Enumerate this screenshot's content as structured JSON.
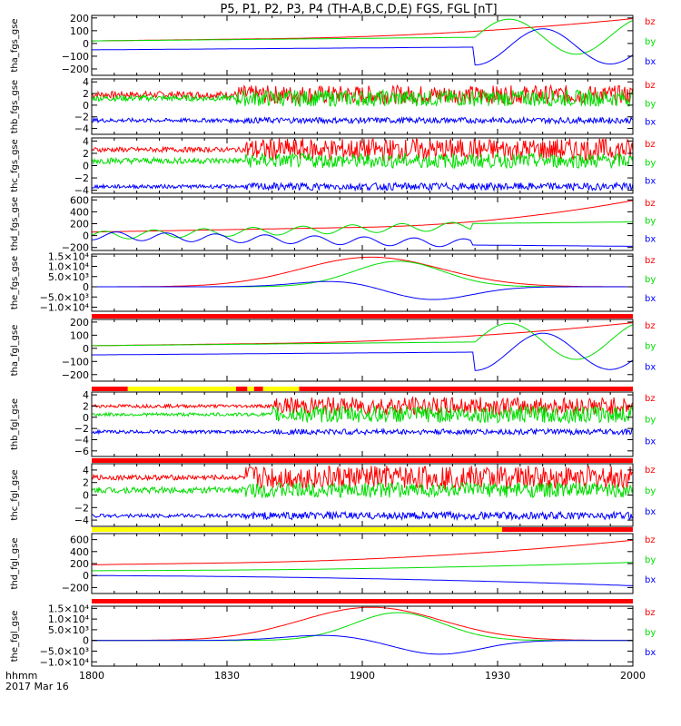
{
  "chart_data": {
    "type": "line",
    "title": "P5, P1, P2, P3, P4 (TH-A,B,C,D,E) FGS, FGL [nT]",
    "x_axis": {
      "label_line1": "hhmm",
      "label_line2": "2017 Mar 16",
      "ticks": [
        {
          "t": 0,
          "label": "1800"
        },
        {
          "t": 30,
          "label": "1830"
        },
        {
          "t": 60,
          "label": "1900"
        },
        {
          "t": 90,
          "label": "1930"
        },
        {
          "t": 120,
          "label": "2000"
        }
      ],
      "range_minutes": [
        0,
        120
      ]
    },
    "legend": [
      "bz",
      "by",
      "bx"
    ],
    "colors": {
      "bz": "#ff0000",
      "by": "#00dd00",
      "bx": "#0000ff",
      "bar_red": "#ff0000",
      "bar_yellow": "#ffff00",
      "axis": "#000000"
    },
    "panels": [
      {
        "ylabel": "tha_fgs_gse",
        "ylim": [
          -250,
          220
        ],
        "ticks": [
          {
            "v": 200,
            "label": "200"
          },
          {
            "v": 100,
            "label": "100"
          },
          {
            "v": 0,
            "label": "0"
          },
          {
            "v": -100,
            "label": "−100"
          },
          {
            "v": -200,
            "label": "−200"
          }
        ],
        "series": [
          {
            "name": "bz",
            "shape": "rise",
            "start": 20,
            "end": 195,
            "rise_from": 40
          },
          {
            "name": "by",
            "shape": "osc",
            "base_start": 20,
            "base_end": 60,
            "amp": 0,
            "start_osc": 85,
            "osc_amp": 140,
            "period": 30
          },
          {
            "name": "bx",
            "shape": "osc",
            "base_start": -50,
            "base_end": -20,
            "amp": 0,
            "start_osc": 85,
            "osc_amp": 140,
            "period": 30,
            "phase": 1.57
          }
        ]
      },
      {
        "ylabel": "thb_fgs_gse",
        "ylim": [
          -5,
          4.5
        ],
        "ticks": [
          {
            "v": 4,
            "label": "4"
          },
          {
            "v": 2,
            "label": "2"
          },
          {
            "v": 0,
            "label": "0"
          },
          {
            "v": -2,
            "label": "−2"
          },
          {
            "v": -4,
            "label": "−4"
          }
        ],
        "series": [
          {
            "name": "bz",
            "shape": "noise",
            "base": 1.8,
            "noise": 0.6,
            "burst_from": 32,
            "burst_noise": 1.6
          },
          {
            "name": "by",
            "shape": "noise",
            "base": 1.2,
            "noise": 0.5,
            "burst_from": 32,
            "burst_noise": 1.4
          },
          {
            "name": "bx",
            "shape": "noise",
            "base": -2.6,
            "noise": 0.35,
            "burst_from": 32,
            "burst_noise": 0.5
          }
        ]
      },
      {
        "ylabel": "thc_fgs_gse",
        "ylim": [
          -4.5,
          4.5
        ],
        "ticks": [
          {
            "v": 4,
            "label": "4"
          },
          {
            "v": 2,
            "label": "2"
          },
          {
            "v": 0,
            "label": "0"
          },
          {
            "v": -2,
            "label": "−2"
          },
          {
            "v": -4,
            "label": "−4"
          }
        ],
        "series": [
          {
            "name": "bz",
            "shape": "noise",
            "base": 2.6,
            "noise": 0.4,
            "burst_from": 34,
            "burst_noise": 1.8
          },
          {
            "name": "by",
            "shape": "noise",
            "base": 0.8,
            "noise": 0.5,
            "burst_from": 34,
            "burst_noise": 1.2
          },
          {
            "name": "bx",
            "shape": "noise",
            "base": -3.4,
            "noise": 0.3,
            "burst_from": 34,
            "burst_noise": 0.6
          }
        ]
      },
      {
        "ylabel": "thd_fgs_gse",
        "ylim": [
          -250,
          650
        ],
        "ticks": [
          {
            "v": 600,
            "label": "600"
          },
          {
            "v": 400,
            "label": "400"
          },
          {
            "v": 200,
            "label": "200"
          },
          {
            "v": 0,
            "label": "0"
          },
          {
            "v": -200,
            "label": "−200"
          }
        ],
        "series": [
          {
            "name": "bz",
            "shape": "rise",
            "start": 60,
            "end": 590,
            "rise_from": 60
          },
          {
            "name": "by",
            "shape": "osc",
            "base_start": 0,
            "base_end": 230,
            "amp": 0,
            "start_osc": 0,
            "osc_amp": 70,
            "period": 11,
            "cut": 84
          },
          {
            "name": "bx",
            "shape": "osc",
            "base_start": 0,
            "base_end": -180,
            "amp": 0,
            "start_osc": 0,
            "osc_amp": 70,
            "period": 11,
            "phase": 1.57,
            "cut": 84
          }
        ]
      },
      {
        "ylabel": "the_fgs_gse",
        "ylim": [
          -12000,
          16000
        ],
        "ticks": [
          {
            "v": 15000,
            "label": "1.5×10⁴"
          },
          {
            "v": 10000,
            "label": "1.0×10⁴"
          },
          {
            "v": 5000,
            "label": "5.0×10³"
          },
          {
            "v": 0,
            "label": "0"
          },
          {
            "v": -5000,
            "label": "−5.0×10³"
          },
          {
            "v": -10000,
            "label": "−1.0×10⁴"
          }
        ],
        "series": [
          {
            "name": "bz",
            "shape": "bump",
            "peak": 14500,
            "center": 62,
            "width": 22
          },
          {
            "name": "by",
            "shape": "bump",
            "peak": 12500,
            "center": 68,
            "width": 14
          },
          {
            "name": "bx",
            "shape": "dip",
            "peak": 3000,
            "center": 55,
            "dip": -6500,
            "dip_center": 75,
            "width": 13
          }
        ]
      },
      {
        "ylabel": "tha_fgl_gse",
        "ylim": [
          -250,
          220
        ],
        "ticks": [
          {
            "v": 200,
            "label": "200"
          },
          {
            "v": 100,
            "label": "100"
          },
          {
            "v": 0,
            "label": "0"
          },
          {
            "v": -100,
            "label": "−100"
          },
          {
            "v": -200,
            "label": "−200"
          }
        ],
        "series": [
          {
            "name": "bz",
            "shape": "rise",
            "start": 20,
            "end": 195,
            "rise_from": 40
          },
          {
            "name": "by",
            "shape": "osc",
            "base_start": 20,
            "base_end": 60,
            "amp": 0,
            "start_osc": 85,
            "osc_amp": 140,
            "period": 30
          },
          {
            "name": "bx",
            "shape": "osc",
            "base_start": -50,
            "base_end": -20,
            "amp": 0,
            "start_osc": 85,
            "osc_amp": 140,
            "period": 30,
            "phase": 1.57
          }
        ]
      },
      {
        "ylabel": "thb_fgl_gse",
        "ylim": [
          -7,
          4.5
        ],
        "ticks": [
          {
            "v": 4,
            "label": "4"
          },
          {
            "v": 2,
            "label": "2"
          },
          {
            "v": 0,
            "label": "0"
          },
          {
            "v": -2,
            "label": "−2"
          },
          {
            "v": -4,
            "label": "−4"
          },
          {
            "v": -6,
            "label": "−6"
          }
        ],
        "series": [
          {
            "name": "bz",
            "shape": "noise",
            "base": 2.0,
            "noise": 0.3,
            "burst_from": 40,
            "burst_noise": 1.6
          },
          {
            "name": "by",
            "shape": "noise",
            "base": 0.5,
            "noise": 0.3,
            "burst_from": 40,
            "burst_noise": 1.5
          },
          {
            "name": "bx",
            "shape": "noise",
            "base": -2.6,
            "noise": 0.3,
            "burst_from": 40,
            "burst_noise": 0.5
          }
        ]
      },
      {
        "ylabel": "thc_fgl_gse",
        "ylim": [
          -5,
          5
        ],
        "ticks": [
          {
            "v": 4,
            "label": "4"
          },
          {
            "v": 2,
            "label": "2"
          },
          {
            "v": 0,
            "label": "0"
          },
          {
            "v": -2,
            "label": "−2"
          },
          {
            "v": -4,
            "label": "−4"
          }
        ],
        "series": [
          {
            "name": "bz",
            "shape": "noise",
            "base": 2.8,
            "noise": 0.4,
            "burst_from": 34,
            "burst_noise": 1.9
          },
          {
            "name": "by",
            "shape": "noise",
            "base": 0.8,
            "noise": 0.5,
            "burst_from": 34,
            "burst_noise": 1.2
          },
          {
            "name": "bx",
            "shape": "noise",
            "base": -3.3,
            "noise": 0.3,
            "burst_from": 34,
            "burst_noise": 0.6
          }
        ]
      },
      {
        "ylabel": "thd_fgl_gse",
        "ylim": [
          -300,
          700
        ],
        "ticks": [
          {
            "v": 600,
            "label": "600"
          },
          {
            "v": 400,
            "label": "400"
          },
          {
            "v": 200,
            "label": "200"
          },
          {
            "v": 0,
            "label": "0"
          },
          {
            "v": -200,
            "label": "−200"
          }
        ],
        "series": [
          {
            "name": "bz",
            "shape": "rise",
            "start": 180,
            "end": 590,
            "rise_from": 30
          },
          {
            "name": "by",
            "shape": "rise",
            "start": 80,
            "end": 220,
            "rise_from": 20
          },
          {
            "name": "bx",
            "shape": "rise",
            "start": 0,
            "end": -170,
            "rise_from": 10
          }
        ]
      },
      {
        "ylabel": "the_fgl_gse",
        "ylim": [
          -12000,
          16000
        ],
        "ticks": [
          {
            "v": 15000,
            "label": "1.5×10⁴"
          },
          {
            "v": 10000,
            "label": "1.0×10⁴"
          },
          {
            "v": 5000,
            "label": "5.0×10³"
          },
          {
            "v": 0,
            "label": "0"
          },
          {
            "v": -5000,
            "label": "−5.0×10³"
          },
          {
            "v": -10000,
            "label": "−1.0×10⁴"
          }
        ],
        "series": [
          {
            "name": "bz",
            "shape": "bump",
            "peak": 15500,
            "center": 62,
            "width": 22
          },
          {
            "name": "by",
            "shape": "bump",
            "peak": 13000,
            "center": 68,
            "width": 14
          },
          {
            "name": "bx",
            "shape": "dip",
            "peak": 2500,
            "center": 52,
            "dip": -6500,
            "dip_center": 77,
            "width": 13
          }
        ]
      }
    ],
    "status_bars": [
      {
        "after_panel": 4,
        "segments": [
          {
            "from": 0,
            "to": 120,
            "color": "red"
          }
        ]
      },
      {
        "after_panel": 5,
        "segments": [
          {
            "from": 0,
            "to": 8,
            "color": "red"
          },
          {
            "from": 8,
            "to": 32,
            "color": "yellow"
          },
          {
            "from": 32,
            "to": 34.5,
            "color": "red"
          },
          {
            "from": 34.5,
            "to": 36,
            "color": "yellow"
          },
          {
            "from": 36,
            "to": 38,
            "color": "red"
          },
          {
            "from": 38,
            "to": 46,
            "color": "yellow"
          },
          {
            "from": 46,
            "to": 120,
            "color": "red"
          }
        ]
      },
      {
        "after_panel": 6,
        "segments": [
          {
            "from": 0,
            "to": 120,
            "color": "red"
          }
        ]
      },
      {
        "after_panel": 7,
        "segments": [
          {
            "from": 0,
            "to": 91,
            "color": "yellow"
          },
          {
            "from": 91,
            "to": 120,
            "color": "red"
          }
        ]
      },
      {
        "after_panel": 8,
        "segments": [
          {
            "from": 0,
            "to": 120,
            "color": "red"
          }
        ]
      }
    ]
  }
}
